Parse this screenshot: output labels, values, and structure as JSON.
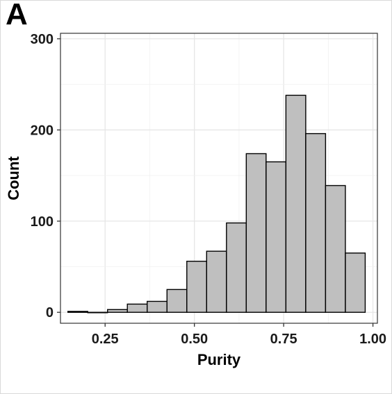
{
  "panel_label": "A",
  "chart_data": {
    "type": "bar",
    "subtype": "histogram",
    "xlabel": "Purity",
    "ylabel": "Count",
    "xlim": [
      0.125,
      1.0125
    ],
    "ylim": [
      -12,
      306
    ],
    "x_ticks": [
      0.25,
      0.5,
      0.75,
      1.0
    ],
    "x_tick_labels": [
      "0.25",
      "0.50",
      "0.75",
      "1.00"
    ],
    "y_ticks": [
      0,
      100,
      200,
      300
    ],
    "y_tick_labels": [
      "0",
      "100",
      "200",
      "300"
    ],
    "grid": true,
    "bar_fill": "#bfbfbf",
    "bar_outline": "#000000",
    "bins": [
      {
        "x0": 0.1458,
        "x1": 0.2013,
        "count": 1
      },
      {
        "x0": 0.2013,
        "x1": 0.2568,
        "count": 0
      },
      {
        "x0": 0.2568,
        "x1": 0.3123,
        "count": 3
      },
      {
        "x0": 0.3123,
        "x1": 0.3678,
        "count": 9
      },
      {
        "x0": 0.3678,
        "x1": 0.4233,
        "count": 12
      },
      {
        "x0": 0.4233,
        "x1": 0.4788,
        "count": 25
      },
      {
        "x0": 0.4788,
        "x1": 0.5343,
        "count": 56
      },
      {
        "x0": 0.5343,
        "x1": 0.5898,
        "count": 67
      },
      {
        "x0": 0.5898,
        "x1": 0.6453,
        "count": 98
      },
      {
        "x0": 0.6453,
        "x1": 0.7008,
        "count": 174
      },
      {
        "x0": 0.7008,
        "x1": 0.7563,
        "count": 165
      },
      {
        "x0": 0.7563,
        "x1": 0.8118,
        "count": 238
      },
      {
        "x0": 0.8118,
        "x1": 0.8673,
        "count": 196
      },
      {
        "x0": 0.8673,
        "x1": 0.9228,
        "count": 139
      },
      {
        "x0": 0.9228,
        "x1": 0.9783,
        "count": 65
      }
    ]
  }
}
